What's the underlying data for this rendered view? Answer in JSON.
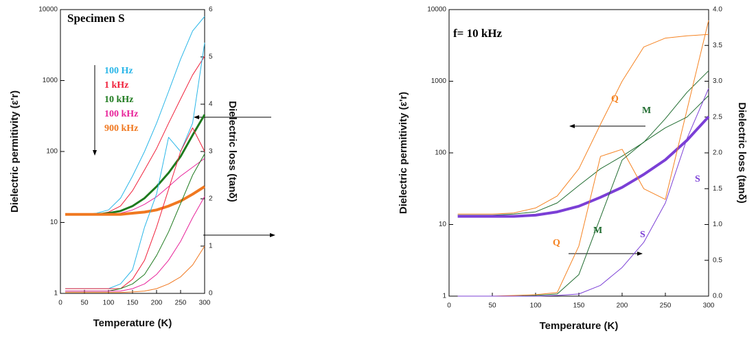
{
  "chart_data": [
    {
      "type": "line",
      "title": "Specimen S",
      "xlabel": "Temperature (K)",
      "ylabel": "Dielectric permitivity (ε'r)",
      "y2label": "Dielectric loss (tanδ)",
      "xlim": [
        0,
        300
      ],
      "xticks": [
        0,
        50,
        100,
        150,
        200,
        250,
        300
      ],
      "ylim": [
        1,
        10000
      ],
      "yticks": [
        1,
        10,
        100,
        1000,
        10000
      ],
      "ylog": true,
      "y2lim": [
        0,
        6
      ],
      "y2ticks": [
        0,
        1,
        2,
        3,
        4,
        5,
        6
      ],
      "legend": true,
      "x": [
        10,
        25,
        50,
        75,
        100,
        125,
        150,
        175,
        200,
        225,
        250,
        275,
        300
      ],
      "series": [
        {
          "name": "100 Hz",
          "color": "#29b6e8",
          "linewidth": 1,
          "values": [
            13,
            13,
            13,
            13.5,
            15,
            22,
            45,
            100,
            250,
            700,
            2000,
            5000,
            8000
          ]
        },
        {
          "name": "1 kHz",
          "color": "#f0203a",
          "linewidth": 1,
          "values": [
            13,
            13,
            13,
            13,
            14,
            17,
            28,
            55,
            110,
            250,
            550,
            1200,
            2200
          ]
        },
        {
          "name": "10 kHz",
          "color": "#1e7a1e",
          "linewidth": 3,
          "values": [
            13,
            13,
            13,
            13,
            13.5,
            14.5,
            17,
            22,
            32,
            50,
            85,
            170,
            330
          ]
        },
        {
          "name": "100 kHz",
          "color": "#e8239a",
          "linewidth": 1,
          "values": [
            13,
            13,
            13,
            13,
            13,
            13.5,
            15,
            18,
            23,
            32,
            45,
            60,
            80
          ]
        },
        {
          "name": "900 kHz",
          "color": "#f07820",
          "linewidth": 4,
          "values": [
            13,
            13,
            13,
            13,
            13,
            13,
            13.5,
            14,
            15,
            17,
            20,
            25,
            32
          ]
        },
        {
          "color": "#29b6e8",
          "linewidth": 1,
          "axis": "y2",
          "values": [
            0.1,
            0.1,
            0.1,
            0.1,
            0.1,
            0.2,
            0.5,
            1.4,
            2.1,
            3.3,
            3.0,
            3.6,
            5.3
          ]
        },
        {
          "color": "#f0203a",
          "linewidth": 1,
          "axis": "y2",
          "values": [
            0.1,
            0.1,
            0.1,
            0.1,
            0.1,
            0.1,
            0.3,
            0.7,
            1.4,
            2.2,
            3.0,
            3.5,
            3.0
          ]
        },
        {
          "color": "#1e7a1e",
          "linewidth": 1,
          "axis": "y2",
          "values": [
            0.05,
            0.05,
            0.05,
            0.05,
            0.05,
            0.1,
            0.2,
            0.4,
            0.8,
            1.3,
            1.9,
            2.5,
            2.95
          ]
        },
        {
          "color": "#e8239a",
          "linewidth": 1,
          "axis": "y2",
          "values": [
            0.05,
            0.05,
            0.05,
            0.05,
            0.05,
            0.05,
            0.1,
            0.2,
            0.4,
            0.7,
            1.1,
            1.6,
            2.05
          ]
        },
        {
          "color": "#f07820",
          "linewidth": 1,
          "axis": "y2",
          "values": [
            0.02,
            0.02,
            0.02,
            0.02,
            0.02,
            0.02,
            0.03,
            0.05,
            0.1,
            0.2,
            0.35,
            0.6,
            1.0
          ]
        }
      ]
    },
    {
      "type": "line",
      "title": "f= 10 kHz",
      "xlabel": "Temperature (K)",
      "ylabel": "Dielectric permitivity (ε'r)",
      "y2label": "Dielectric loss (tanδ)",
      "xlim": [
        0,
        300
      ],
      "xticks": [
        0,
        50,
        100,
        150,
        200,
        250,
        300
      ],
      "ylim": [
        1,
        10000
      ],
      "yticks": [
        1,
        10,
        100,
        1000,
        10000
      ],
      "ylog": true,
      "y2lim": [
        0,
        4
      ],
      "y2ticks": [
        {
          "value": 0,
          "label": "0.0"
        },
        0.5,
        {
          "value": 1,
          "label": "1.0"
        },
        1.5,
        {
          "value": 2,
          "label": "2.0"
        },
        2.5,
        {
          "value": 3,
          "label": "3.0"
        },
        3.5,
        {
          "value": 4,
          "label": "4.0"
        }
      ],
      "legend": false,
      "x": [
        10,
        25,
        50,
        75,
        100,
        125,
        150,
        175,
        200,
        225,
        250,
        275,
        300
      ],
      "series": [
        {
          "name": "Q",
          "color": "#f58220",
          "linewidth": 1,
          "values": [
            14,
            14,
            14,
            14.5,
            17,
            25,
            60,
            250,
            1000,
            3000,
            4000,
            4300,
            4500
          ]
        },
        {
          "name": "M",
          "color": "#1f6b2f",
          "linewidth": 1,
          "values": [
            13.5,
            13.5,
            13.5,
            14,
            15,
            20,
            35,
            60,
            90,
            140,
            300,
            700,
            1400
          ]
        },
        {
          "name": "S",
          "color": "#7b3fd6",
          "linewidth": 4,
          "values": [
            13,
            13,
            13,
            13,
            13.5,
            15,
            18,
            24,
            33,
            50,
            80,
            150,
            320
          ]
        },
        {
          "name": "Q",
          "color": "#f58220",
          "linewidth": 1,
          "axis": "y2",
          "values": [
            0,
            0,
            0,
            0.01,
            0.02,
            0.05,
            0.7,
            1.95,
            2.05,
            1.5,
            1.35,
            2.6,
            3.85
          ]
        },
        {
          "name": "M",
          "color": "#1f6b2f",
          "linewidth": 1,
          "axis": "y2",
          "values": [
            0,
            0,
            0,
            0,
            0.01,
            0.03,
            0.3,
            1.1,
            1.9,
            2.15,
            2.35,
            2.5,
            2.8
          ]
        },
        {
          "name": "S",
          "color": "#7b3fd6",
          "linewidth": 1,
          "axis": "y2",
          "values": [
            0,
            0,
            0,
            0,
            0,
            0.01,
            0.03,
            0.15,
            0.4,
            0.75,
            1.3,
            2.2,
            2.9
          ]
        }
      ]
    }
  ]
}
